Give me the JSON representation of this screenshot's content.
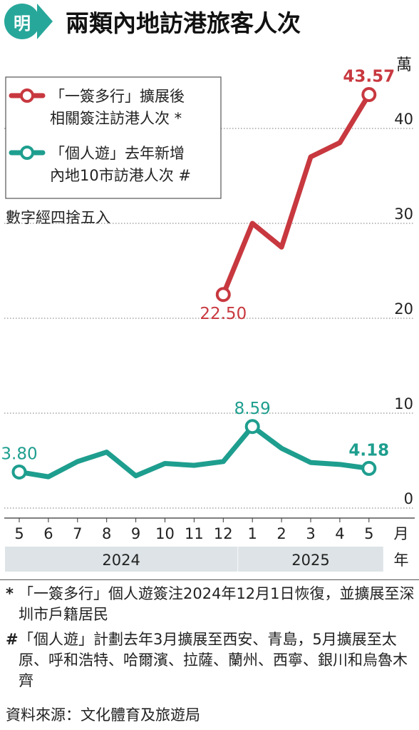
{
  "header": {
    "logo_text": "明",
    "title": "兩類內地訪港旅客人次"
  },
  "chart_data": {
    "type": "line",
    "unit": "萬",
    "precision_note": "數字經四捨五入",
    "ylim": [
      0,
      45
    ],
    "yticks": [
      0,
      10,
      20,
      30,
      40
    ],
    "categories": [
      "5",
      "6",
      "7",
      "8",
      "9",
      "10",
      "11",
      "12",
      "1",
      "2",
      "3",
      "4",
      "5"
    ],
    "x_unit": "月",
    "year_unit": "年",
    "years": [
      {
        "label": "2024",
        "from": 0,
        "to": 7
      },
      {
        "label": "2025",
        "from": 8,
        "to": 12
      }
    ],
    "series": [
      {
        "name": "「一簽多行」擴展後相關簽注訪港人次 *",
        "legend_lines": [
          "「一簽多行」擴展後",
          "相關簽注訪港人次 *"
        ],
        "color": "#c8383f",
        "values": [
          null,
          null,
          null,
          null,
          null,
          null,
          null,
          22.5,
          30.0,
          27.5,
          37.0,
          38.5,
          43.57
        ],
        "labels": [
          {
            "index": 7,
            "text": "22.50",
            "pos": "below"
          },
          {
            "index": 12,
            "text": "43.57",
            "pos": "above"
          }
        ]
      },
      {
        "name": "「個人遊」去年新增內地10市訪港人次 #",
        "legend_lines": [
          "「個人遊」去年新增",
          "內地10市訪港人次 #"
        ],
        "color": "#1e9e8e",
        "values": [
          3.8,
          3.3,
          4.9,
          5.9,
          3.4,
          4.7,
          4.5,
          4.9,
          8.59,
          6.3,
          4.8,
          4.6,
          4.18
        ],
        "labels": [
          {
            "index": 0,
            "text": "3.80",
            "pos": "above"
          },
          {
            "index": 8,
            "text": "8.59",
            "pos": "above"
          },
          {
            "index": 12,
            "text": "4.18",
            "pos": "above"
          }
        ]
      }
    ]
  },
  "footnotes": [
    {
      "mark": "*",
      "text": "「一簽多行」個人遊簽注2024年12月1日恢復，並擴展至深圳市戶籍居民"
    },
    {
      "mark": "#",
      "text": "「個人遊」計劃去年3月擴展至西安、青島，5月擴展至太原、呼和浩特、哈爾濱、拉薩、蘭州、西寧、銀川和烏魯木齊"
    }
  ],
  "source": "資料來源：文化體育及旅遊局"
}
